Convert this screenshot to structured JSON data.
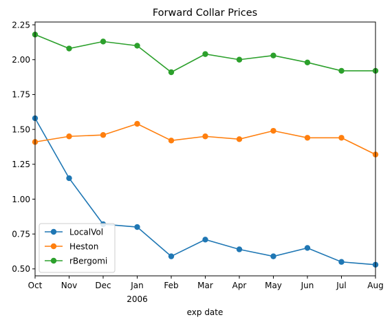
{
  "chart_data": {
    "type": "line",
    "title": "Forward Collar Prices",
    "xlabel": "exp date",
    "ylabel": "",
    "categories": [
      "Oct",
      "Nov",
      "Dec",
      "Jan",
      "Feb",
      "Mar",
      "Apr",
      "May",
      "Jun",
      "Jul",
      "Aug"
    ],
    "year_label": "2006",
    "yticks": [
      "0.50",
      "0.75",
      "1.00",
      "1.25",
      "1.50",
      "1.75",
      "2.00",
      "2.25"
    ],
    "ylim": [
      0.45,
      2.27
    ],
    "grid": false,
    "legend_position": "lower-left",
    "series": [
      {
        "name": "LocalVol",
        "color": "#1f77b4",
        "values": [
          1.58,
          1.15,
          0.82,
          0.8,
          0.59,
          0.71,
          0.64,
          0.59,
          0.65,
          0.55,
          0.53
        ]
      },
      {
        "name": "Heston",
        "color": "#ff7f0e",
        "values": [
          1.41,
          1.45,
          1.46,
          1.54,
          1.42,
          1.45,
          1.43,
          1.49,
          1.44,
          1.44,
          1.32
        ]
      },
      {
        "name": "rBergomi",
        "color": "#2ca02c",
        "values": [
          2.18,
          2.08,
          2.13,
          2.1,
          1.91,
          2.04,
          2.0,
          2.03,
          1.98,
          1.92,
          1.92
        ]
      }
    ]
  }
}
